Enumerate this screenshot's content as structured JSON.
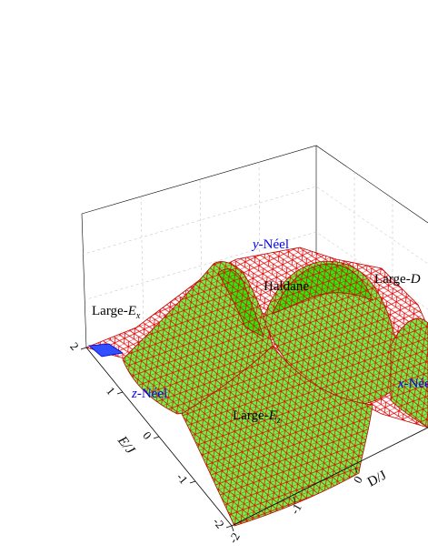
{
  "chart_data": {
    "type": "surface",
    "xlabel": "D/J",
    "ylabel": "E/J",
    "xticks": [
      -2,
      -1,
      0
    ],
    "yticks": [
      -2,
      -1,
      0,
      1,
      2
    ],
    "annotations": [
      {
        "italic": "y",
        "rest": "-Néel",
        "color": "#0000ff"
      },
      {
        "rest": "Haldane",
        "color": "#000000"
      },
      {
        "lead": "Large-",
        "italic": "D",
        "color": "#000000"
      },
      {
        "lead": "Large-",
        "italic": "E",
        "sub": "x",
        "color": "#000000"
      },
      {
        "italic": "z",
        "rest": "-Néel",
        "color": "#0000ff"
      },
      {
        "italic": "x",
        "rest": "-Néel",
        "color": "#0000ff"
      },
      {
        "lead": "Large-",
        "italic": "E",
        "sub": "z",
        "color": "#000000"
      }
    ]
  }
}
